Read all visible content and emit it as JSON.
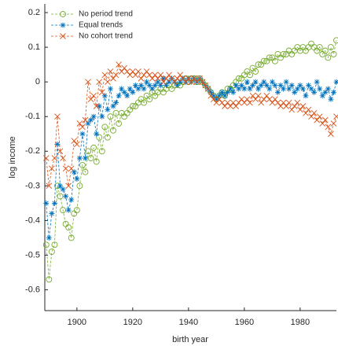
{
  "chart_data": {
    "type": "line",
    "x_label": "birth year",
    "y_label": "log income",
    "x": [
      1889,
      1890,
      1891,
      1892,
      1893,
      1894,
      1895,
      1896,
      1897,
      1898,
      1899,
      1900,
      1901,
      1902,
      1903,
      1904,
      1905,
      1906,
      1907,
      1908,
      1909,
      1910,
      1911,
      1912,
      1913,
      1914,
      1915,
      1916,
      1917,
      1918,
      1919,
      1920,
      1921,
      1922,
      1923,
      1924,
      1925,
      1926,
      1927,
      1928,
      1929,
      1930,
      1931,
      1932,
      1933,
      1934,
      1935,
      1936,
      1937,
      1938,
      1939,
      1940,
      1941,
      1942,
      1943,
      1944,
      1945,
      1946,
      1947,
      1948,
      1949,
      1950,
      1951,
      1952,
      1953,
      1954,
      1955,
      1956,
      1957,
      1958,
      1959,
      1960,
      1961,
      1962,
      1963,
      1964,
      1965,
      1966,
      1967,
      1968,
      1969,
      1970,
      1971,
      1972,
      1973,
      1974,
      1975,
      1976,
      1977,
      1978,
      1979,
      1980,
      1981,
      1982,
      1983,
      1984,
      1985,
      1986,
      1987,
      1988,
      1989,
      1990,
      1991,
      1992,
      1993
    ],
    "series": [
      {
        "name": "No period trend",
        "color": "#77ac30",
        "marker": "o",
        "linestyle": "dashed",
        "values": [
          -0.47,
          -0.57,
          -0.49,
          -0.47,
          -0.3,
          -0.33,
          -0.37,
          -0.41,
          -0.42,
          -0.45,
          -0.38,
          -0.37,
          -0.3,
          -0.24,
          -0.26,
          -0.2,
          -0.22,
          -0.19,
          -0.23,
          -0.16,
          -0.2,
          -0.13,
          -0.16,
          -0.1,
          -0.14,
          -0.09,
          -0.12,
          -0.09,
          -0.1,
          -0.09,
          -0.08,
          -0.07,
          -0.07,
          -0.06,
          -0.05,
          -0.06,
          -0.04,
          -0.05,
          -0.03,
          -0.04,
          -0.03,
          -0.02,
          -0.03,
          -0.02,
          -0.01,
          -0.02,
          -0.01,
          0,
          -0.01,
          0,
          0.01,
          0,
          0.01,
          0.01,
          0,
          0.01,
          0,
          -0.01,
          -0.02,
          -0.03,
          -0.04,
          -0.05,
          -0.04,
          -0.03,
          -0.04,
          -0.02,
          -0.02,
          -0.01,
          0,
          0.01,
          0.01,
          0.02,
          0.03,
          0.02,
          0.04,
          0.03,
          0.05,
          0.05,
          0.06,
          0.06,
          0.07,
          0.07,
          0.06,
          0.08,
          0.07,
          0.08,
          0.08,
          0.09,
          0.08,
          0.09,
          0.1,
          0.09,
          0.1,
          0.09,
          0.1,
          0.11,
          0.1,
          0.09,
          0.1,
          0.08,
          0.09,
          0.07,
          0.1,
          0.08,
          0.12
        ]
      },
      {
        "name": "Equal trends",
        "color": "#0072bd",
        "marker": "*",
        "linestyle": "dashed",
        "values": [
          -0.35,
          -0.45,
          -0.38,
          -0.35,
          -0.18,
          -0.3,
          -0.31,
          -0.33,
          -0.37,
          -0.34,
          -0.26,
          -0.28,
          -0.22,
          -0.15,
          -0.22,
          -0.12,
          -0.11,
          -0.1,
          -0.15,
          -0.07,
          -0.1,
          -0.04,
          -0.08,
          -0.02,
          -0.07,
          -0.06,
          -0.04,
          -0.02,
          -0.03,
          -0.04,
          -0.02,
          -0.03,
          -0.01,
          -0.02,
          -0.01,
          -0.02,
          0,
          -0.01,
          -0.02,
          -0.01,
          0,
          -0.01,
          0.01,
          -0.01,
          0,
          0.01,
          0,
          -0.01,
          0,
          0.01,
          0,
          0.01,
          0,
          0.01,
          0,
          0.01,
          0,
          -0.01,
          -0.02,
          -0.03,
          -0.04,
          -0.05,
          -0.04,
          -0.03,
          -0.04,
          -0.03,
          -0.02,
          -0.03,
          -0.01,
          -0.02,
          -0.01,
          -0.02,
          0,
          -0.02,
          -0.01,
          0,
          -0.02,
          -0.01,
          0,
          -0.01,
          -0.02,
          0,
          -0.01,
          -0.03,
          -0.01,
          -0.02,
          0,
          -0.02,
          -0.01,
          -0.03,
          -0.02,
          -0.01,
          -0.02,
          -0.04,
          -0.01,
          -0.02,
          -0.03,
          0,
          -0.02,
          -0.04,
          -0.03,
          -0.02,
          -0.05,
          -0.03,
          0
        ]
      },
      {
        "name": "No cohort trend",
        "color": "#d95319",
        "marker": "x",
        "linestyle": "dashed",
        "values": [
          -0.22,
          -0.3,
          -0.25,
          -0.22,
          -0.1,
          -0.2,
          -0.22,
          -0.25,
          -0.3,
          -0.25,
          -0.17,
          -0.18,
          -0.12,
          -0.13,
          -0.11,
          0,
          -0.05,
          -0.04,
          -0.07,
          0,
          -0.03,
          0.02,
          0,
          0.03,
          0.01,
          0.02,
          0.05,
          0.03,
          0.04,
          0.03,
          0.02,
          0.03,
          0.02,
          0.03,
          0.01,
          0.02,
          0.03,
          0.02,
          0.01,
          0.02,
          0.01,
          0.02,
          0,
          0.01,
          0.02,
          0.01,
          0,
          0.01,
          0.02,
          0.01,
          0,
          0.01,
          0,
          0.01,
          0,
          0.01,
          0,
          -0.01,
          -0.02,
          -0.04,
          -0.05,
          -0.06,
          -0.05,
          -0.06,
          -0.07,
          -0.06,
          -0.07,
          -0.06,
          -0.07,
          -0.06,
          -0.05,
          -0.06,
          -0.05,
          -0.06,
          -0.04,
          -0.05,
          -0.04,
          -0.06,
          -0.05,
          -0.04,
          -0.05,
          -0.06,
          -0.05,
          -0.06,
          -0.07,
          -0.06,
          -0.07,
          -0.06,
          -0.08,
          -0.07,
          -0.06,
          -0.08,
          -0.07,
          -0.09,
          -0.08,
          -0.1,
          -0.09,
          -0.11,
          -0.1,
          -0.12,
          -0.11,
          -0.13,
          -0.15,
          -0.12,
          -0.1
        ]
      }
    ],
    "xlim": [
      1888.5,
      1993
    ],
    "ylim": [
      -0.66,
      0.225
    ],
    "xticks": [
      1900,
      1920,
      1940,
      1960,
      1980
    ],
    "yticks": [
      -0.6,
      -0.5,
      -0.4,
      -0.3,
      -0.2,
      -0.1,
      0,
      0.1,
      0.2
    ],
    "grid": false,
    "legend": "upper left"
  }
}
